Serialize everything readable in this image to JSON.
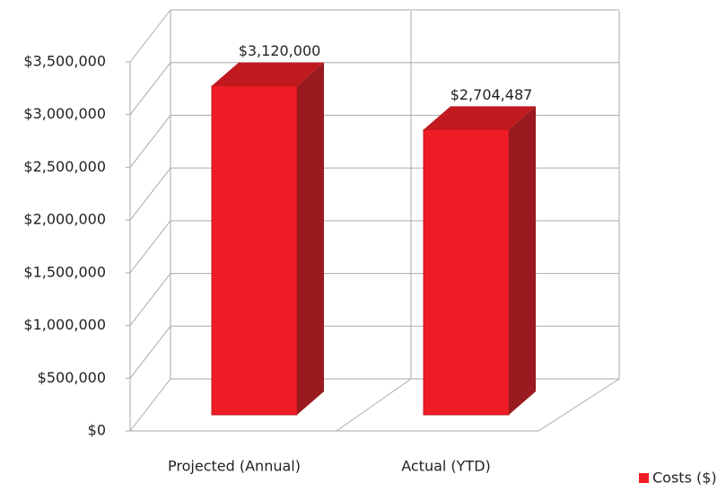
{
  "chart_data": {
    "type": "bar3d",
    "categories": [
      "Projected (Annual)",
      "Actual (YTD)"
    ],
    "series": [
      {
        "name": "Costs ($)",
        "color": "#ee1c24",
        "values": [
          3120000,
          2704487
        ],
        "value_labels": [
          "$3,120,000",
          "$2,704,487"
        ]
      }
    ],
    "ylim": [
      0,
      3500000
    ],
    "yticks": [
      {
        "value": 0,
        "label": "$0"
      },
      {
        "value": 500000,
        "label": "$500,000"
      },
      {
        "value": 1000000,
        "label": "$1,000,000"
      },
      {
        "value": 1500000,
        "label": "$1,500,000"
      },
      {
        "value": 2000000,
        "label": "$2,000,000"
      },
      {
        "value": 2500000,
        "label": "$2,500,000"
      },
      {
        "value": 3000000,
        "label": "$3,000,000"
      },
      {
        "value": 3500000,
        "label": "$3,500,000"
      }
    ],
    "grid": true,
    "legend": "bottom-right"
  }
}
